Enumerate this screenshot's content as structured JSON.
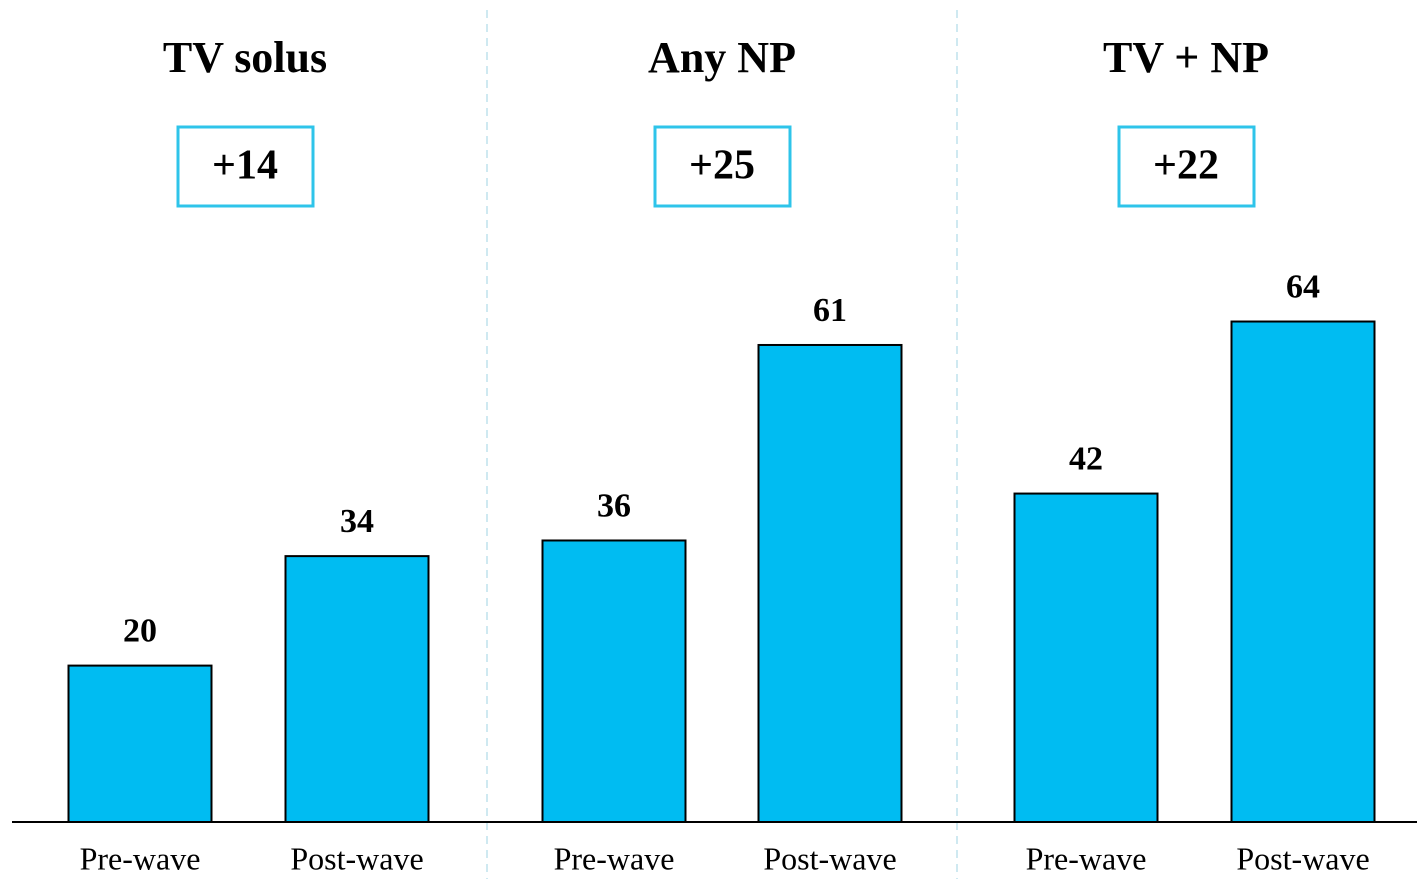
{
  "chart_data": [
    {
      "type": "bar",
      "title": "TV solus",
      "annotation": "+14",
      "categories": [
        "Pre-wave",
        "Post-wave"
      ],
      "values": [
        20,
        34
      ],
      "color": "#00bcf2"
    },
    {
      "type": "bar",
      "title": "Any NP",
      "annotation": "+25",
      "categories": [
        "Pre-wave",
        "Post-wave"
      ],
      "values": [
        36,
        61
      ],
      "color": "#00bcf2"
    },
    {
      "type": "bar",
      "title": "TV + NP",
      "annotation": "+22",
      "categories": [
        "Pre-wave",
        "Post-wave"
      ],
      "values": [
        42,
        64
      ],
      "color": "#00bcf2"
    }
  ]
}
